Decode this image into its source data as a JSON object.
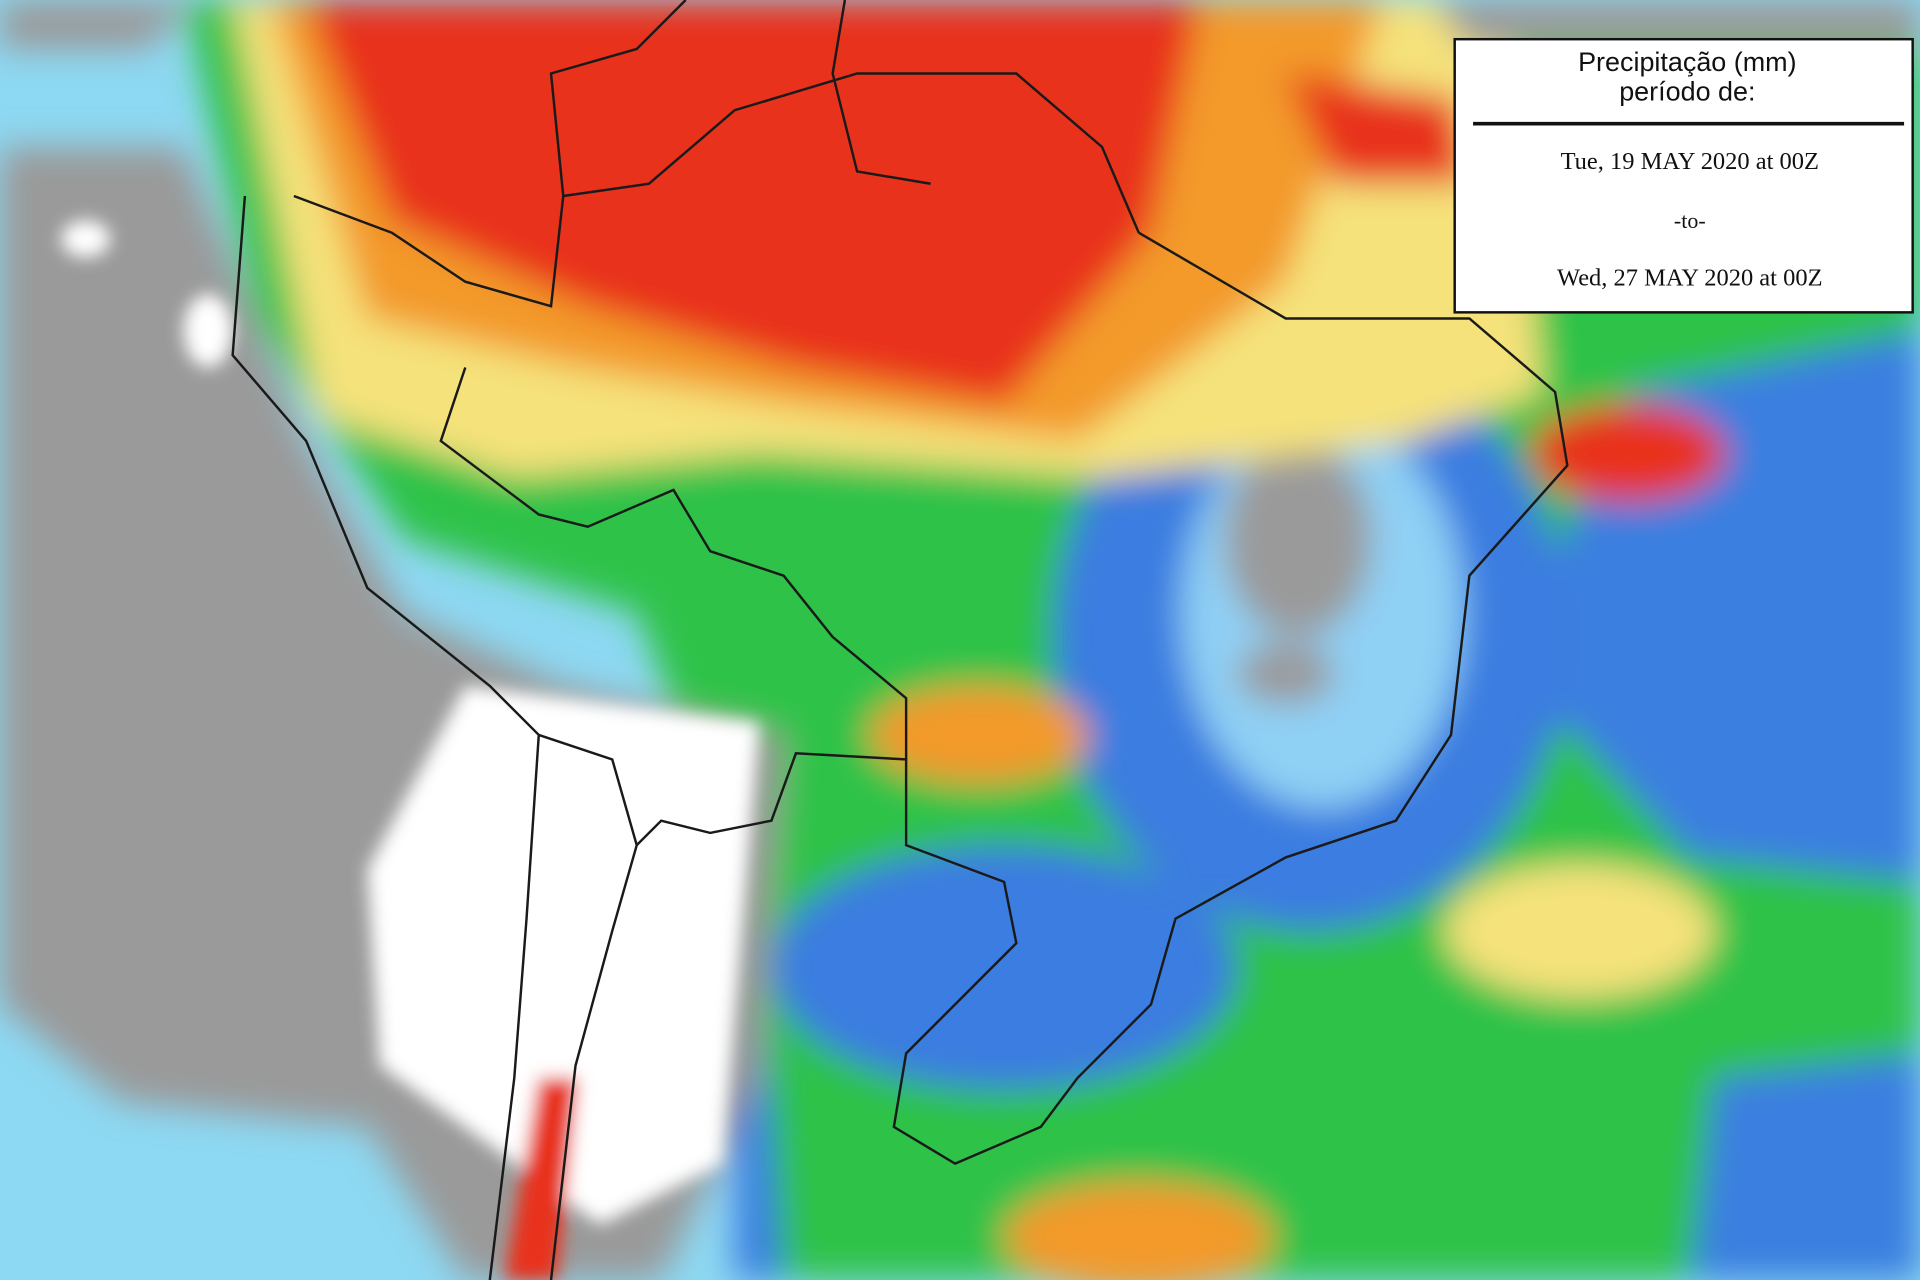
{
  "legend": {
    "title": "Precipitação (mm)",
    "subtitle": "período de:",
    "start": "Tue, 19 MAY 2020 at 00Z",
    "separator": "-to-",
    "end": "Wed, 27 MAY 2020 at 00Z"
  }
}
